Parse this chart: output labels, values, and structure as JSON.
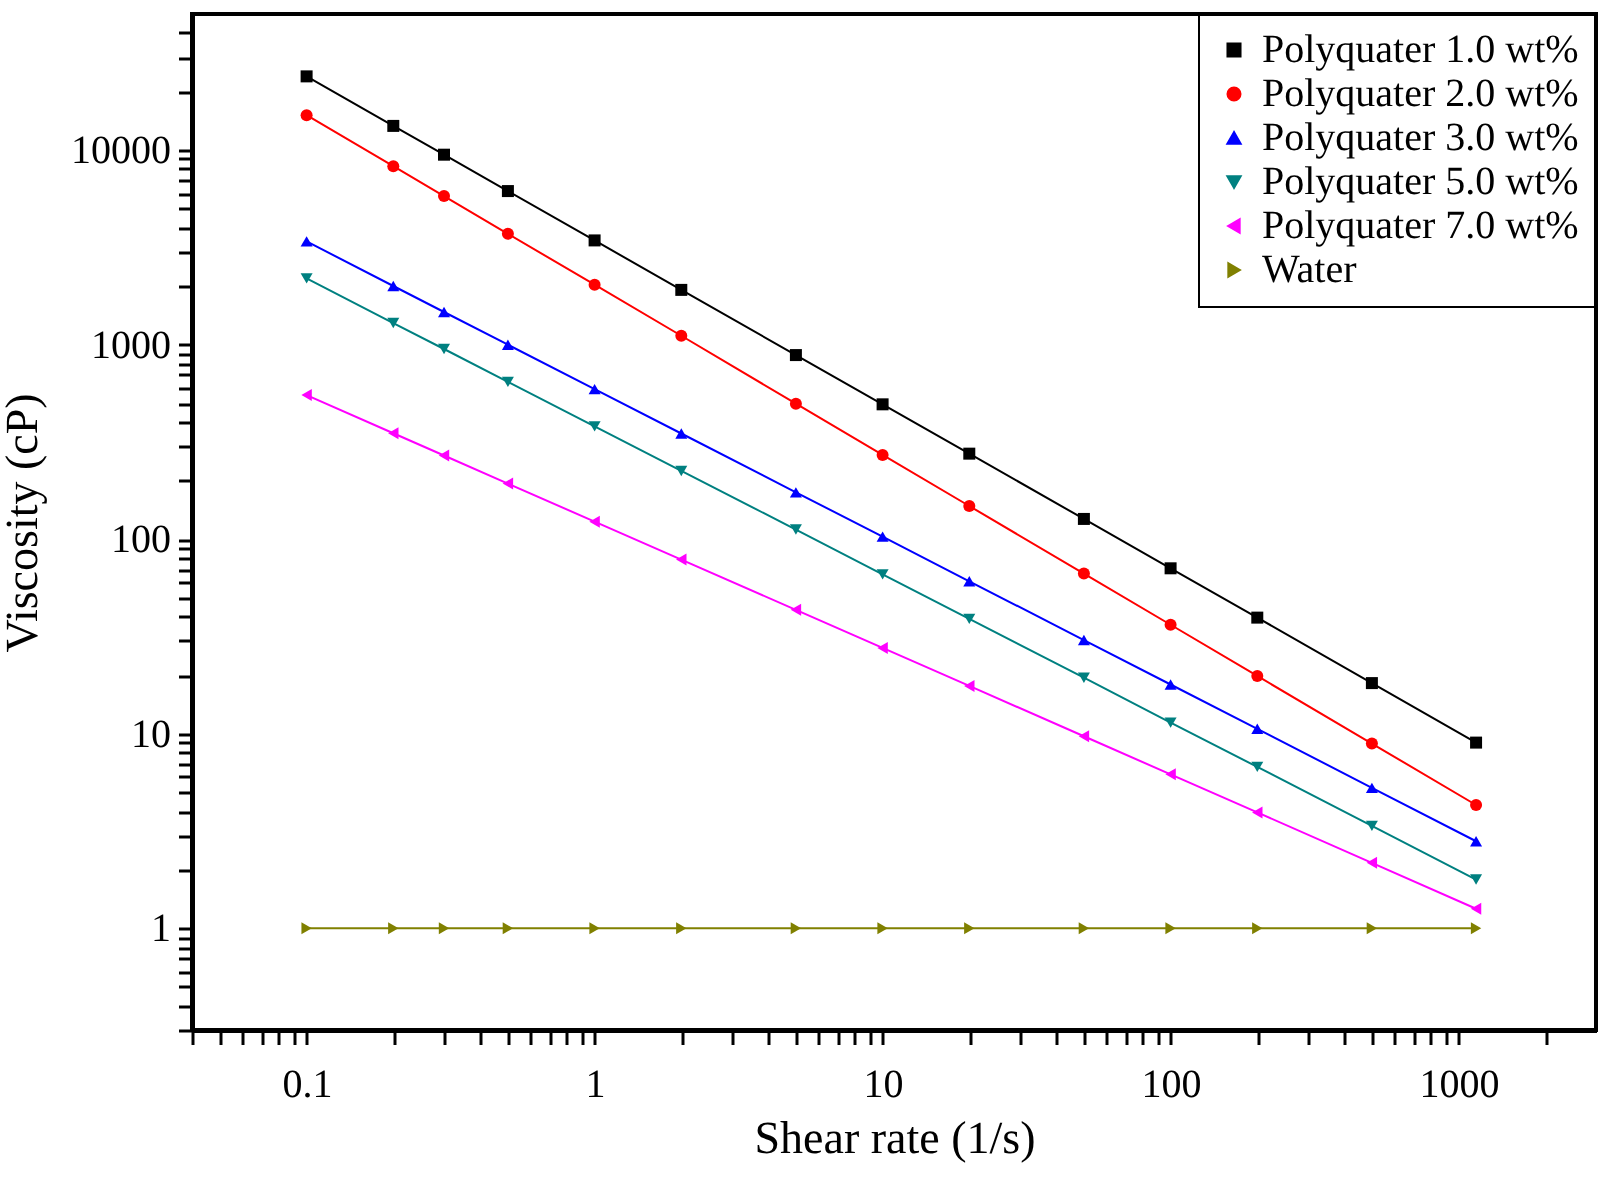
{
  "chart_data": {
    "type": "line",
    "xlabel": "Shear rate (1/s)",
    "ylabel": "Viscosity (cP)",
    "log": "xy",
    "grid": false,
    "legend": "top right",
    "x": [
      0.1,
      0.2,
      0.3,
      0.5,
      1,
      2,
      5,
      10,
      20,
      50,
      100,
      200,
      500,
      1150
    ],
    "xlim": [
      0.04,
      3000
    ],
    "ylim": [
      0.3,
      50000
    ],
    "xticks": [
      {
        "value": 0.04,
        "label": null
      },
      {
        "value": 0.05,
        "label": null
      },
      {
        "value": 0.06,
        "label": null
      },
      {
        "value": 0.07,
        "label": null
      },
      {
        "value": 0.08,
        "label": null
      },
      {
        "value": 0.09,
        "label": null
      },
      0.1,
      {
        "value": 0.2,
        "label": null
      },
      {
        "value": 0.3,
        "label": null
      },
      {
        "value": 0.4,
        "label": null
      },
      {
        "value": 0.5,
        "label": null
      },
      {
        "value": 0.6,
        "label": null
      },
      {
        "value": 0.7,
        "label": null
      },
      {
        "value": 0.8,
        "label": null
      },
      {
        "value": 0.9,
        "label": null
      },
      1,
      {
        "value": 2,
        "label": null
      },
      {
        "value": 3,
        "label": null
      },
      {
        "value": 4,
        "label": null
      },
      {
        "value": 5,
        "label": null
      },
      {
        "value": 6,
        "label": null
      },
      {
        "value": 7,
        "label": null
      },
      {
        "value": 8,
        "label": null
      },
      {
        "value": 9,
        "label": null
      },
      10,
      {
        "value": 20,
        "label": null
      },
      {
        "value": 30,
        "label": null
      },
      {
        "value": 40,
        "label": null
      },
      {
        "value": 50,
        "label": null
      },
      {
        "value": 60,
        "label": null
      },
      {
        "value": 70,
        "label": null
      },
      {
        "value": 80,
        "label": null
      },
      {
        "value": 90,
        "label": null
      },
      100,
      {
        "value": 200,
        "label": null
      },
      {
        "value": 300,
        "label": null
      },
      {
        "value": 400,
        "label": null
      },
      {
        "value": 500,
        "label": null
      },
      {
        "value": 600,
        "label": null
      },
      {
        "value": 700,
        "label": null
      },
      {
        "value": 800,
        "label": null
      },
      {
        "value": 900,
        "label": null
      },
      1000,
      {
        "value": 2000,
        "label": null
      }
    ],
    "yticks": [
      {
        "value": 0.3,
        "label": null
      },
      {
        "value": 0.4,
        "label": null
      },
      {
        "value": 0.5,
        "label": null
      },
      {
        "value": 0.6,
        "label": null
      },
      {
        "value": 0.7,
        "label": null
      },
      {
        "value": 0.8,
        "label": null
      },
      {
        "value": 0.9,
        "label": null
      },
      1,
      {
        "value": 2,
        "label": null
      },
      {
        "value": 3,
        "label": null
      },
      {
        "value": 4,
        "label": null
      },
      {
        "value": 5,
        "label": null
      },
      {
        "value": 6,
        "label": null
      },
      {
        "value": 7,
        "label": null
      },
      {
        "value": 8,
        "label": null
      },
      {
        "value": 9,
        "label": null
      },
      10,
      {
        "value": 20,
        "label": null
      },
      {
        "value": 30,
        "label": null
      },
      {
        "value": 40,
        "label": null
      },
      {
        "value": 50,
        "label": null
      },
      {
        "value": 60,
        "label": null
      },
      {
        "value": 70,
        "label": null
      },
      {
        "value": 80,
        "label": null
      },
      {
        "value": 90,
        "label": null
      },
      100,
      {
        "value": 200,
        "label": null
      },
      {
        "value": 300,
        "label": null
      },
      {
        "value": 400,
        "label": null
      },
      {
        "value": 500,
        "label": null
      },
      {
        "value": 600,
        "label": null
      },
      {
        "value": 700,
        "label": null
      },
      {
        "value": 800,
        "label": null
      },
      {
        "value": 900,
        "label": null
      },
      1000,
      {
        "value": 2000,
        "label": null
      },
      {
        "value": 3000,
        "label": null
      },
      {
        "value": 4000,
        "label": null
      },
      {
        "value": 5000,
        "label": null
      },
      {
        "value": 6000,
        "label": null
      },
      {
        "value": 7000,
        "label": null
      },
      {
        "value": 8000,
        "label": null
      },
      {
        "value": 9000,
        "label": null
      },
      10000,
      {
        "value": 20000,
        "label": null
      },
      {
        "value": 30000,
        "label": null
      },
      {
        "value": 40000,
        "label": null
      }
    ],
    "series": [
      {
        "name": "Polyquater 1.0 wt%",
        "color": "#000000",
        "marker": "square",
        "values": [
          23900,
          13300,
          9460,
          6150,
          3430,
          1910,
          883,
          493,
          275,
          127,
          70.8,
          39.5,
          18.2,
          9.0
        ]
      },
      {
        "name": "Polyquater 2.0 wt%",
        "color": "#ff0000",
        "marker": "circle",
        "values": [
          15100,
          8260,
          5800,
          3710,
          2030,
          1110,
          497,
          271,
          148,
          66.5,
          36.3,
          19.8,
          8.9,
          4.3
        ]
      },
      {
        "name": "Polyquater 3.0 wt%",
        "color": "#0000ff",
        "marker": "triangle-up",
        "values": [
          3390,
          2000,
          1470,
          998,
          590,
          349,
          174,
          103,
          60.7,
          30.3,
          17.9,
          10.6,
          5.27,
          2.8
        ]
      },
      {
        "name": "Polyquater 5.0 wt%",
        "color": "#008080",
        "marker": "triangle-down",
        "values": [
          2190,
          1290,
          949,
          643,
          380,
          224,
          112,
          65.9,
          38.9,
          19.4,
          11.4,
          6.75,
          3.36,
          1.78
        ]
      },
      {
        "name": "Polyquater 7.0 wt%",
        "color": "#ff00ff",
        "marker": "triangle-left",
        "values": [
          550,
          350,
          269,
          193,
          123,
          78.5,
          43.3,
          27.6,
          17.6,
          9.7,
          6.18,
          3.94,
          2.17,
          1.26
        ]
      },
      {
        "name": "Water",
        "color": "#808000",
        "marker": "triangle-right",
        "values": [
          1,
          1,
          1,
          1,
          1,
          1,
          1,
          1,
          1,
          1,
          1,
          1,
          1,
          1
        ]
      }
    ]
  }
}
